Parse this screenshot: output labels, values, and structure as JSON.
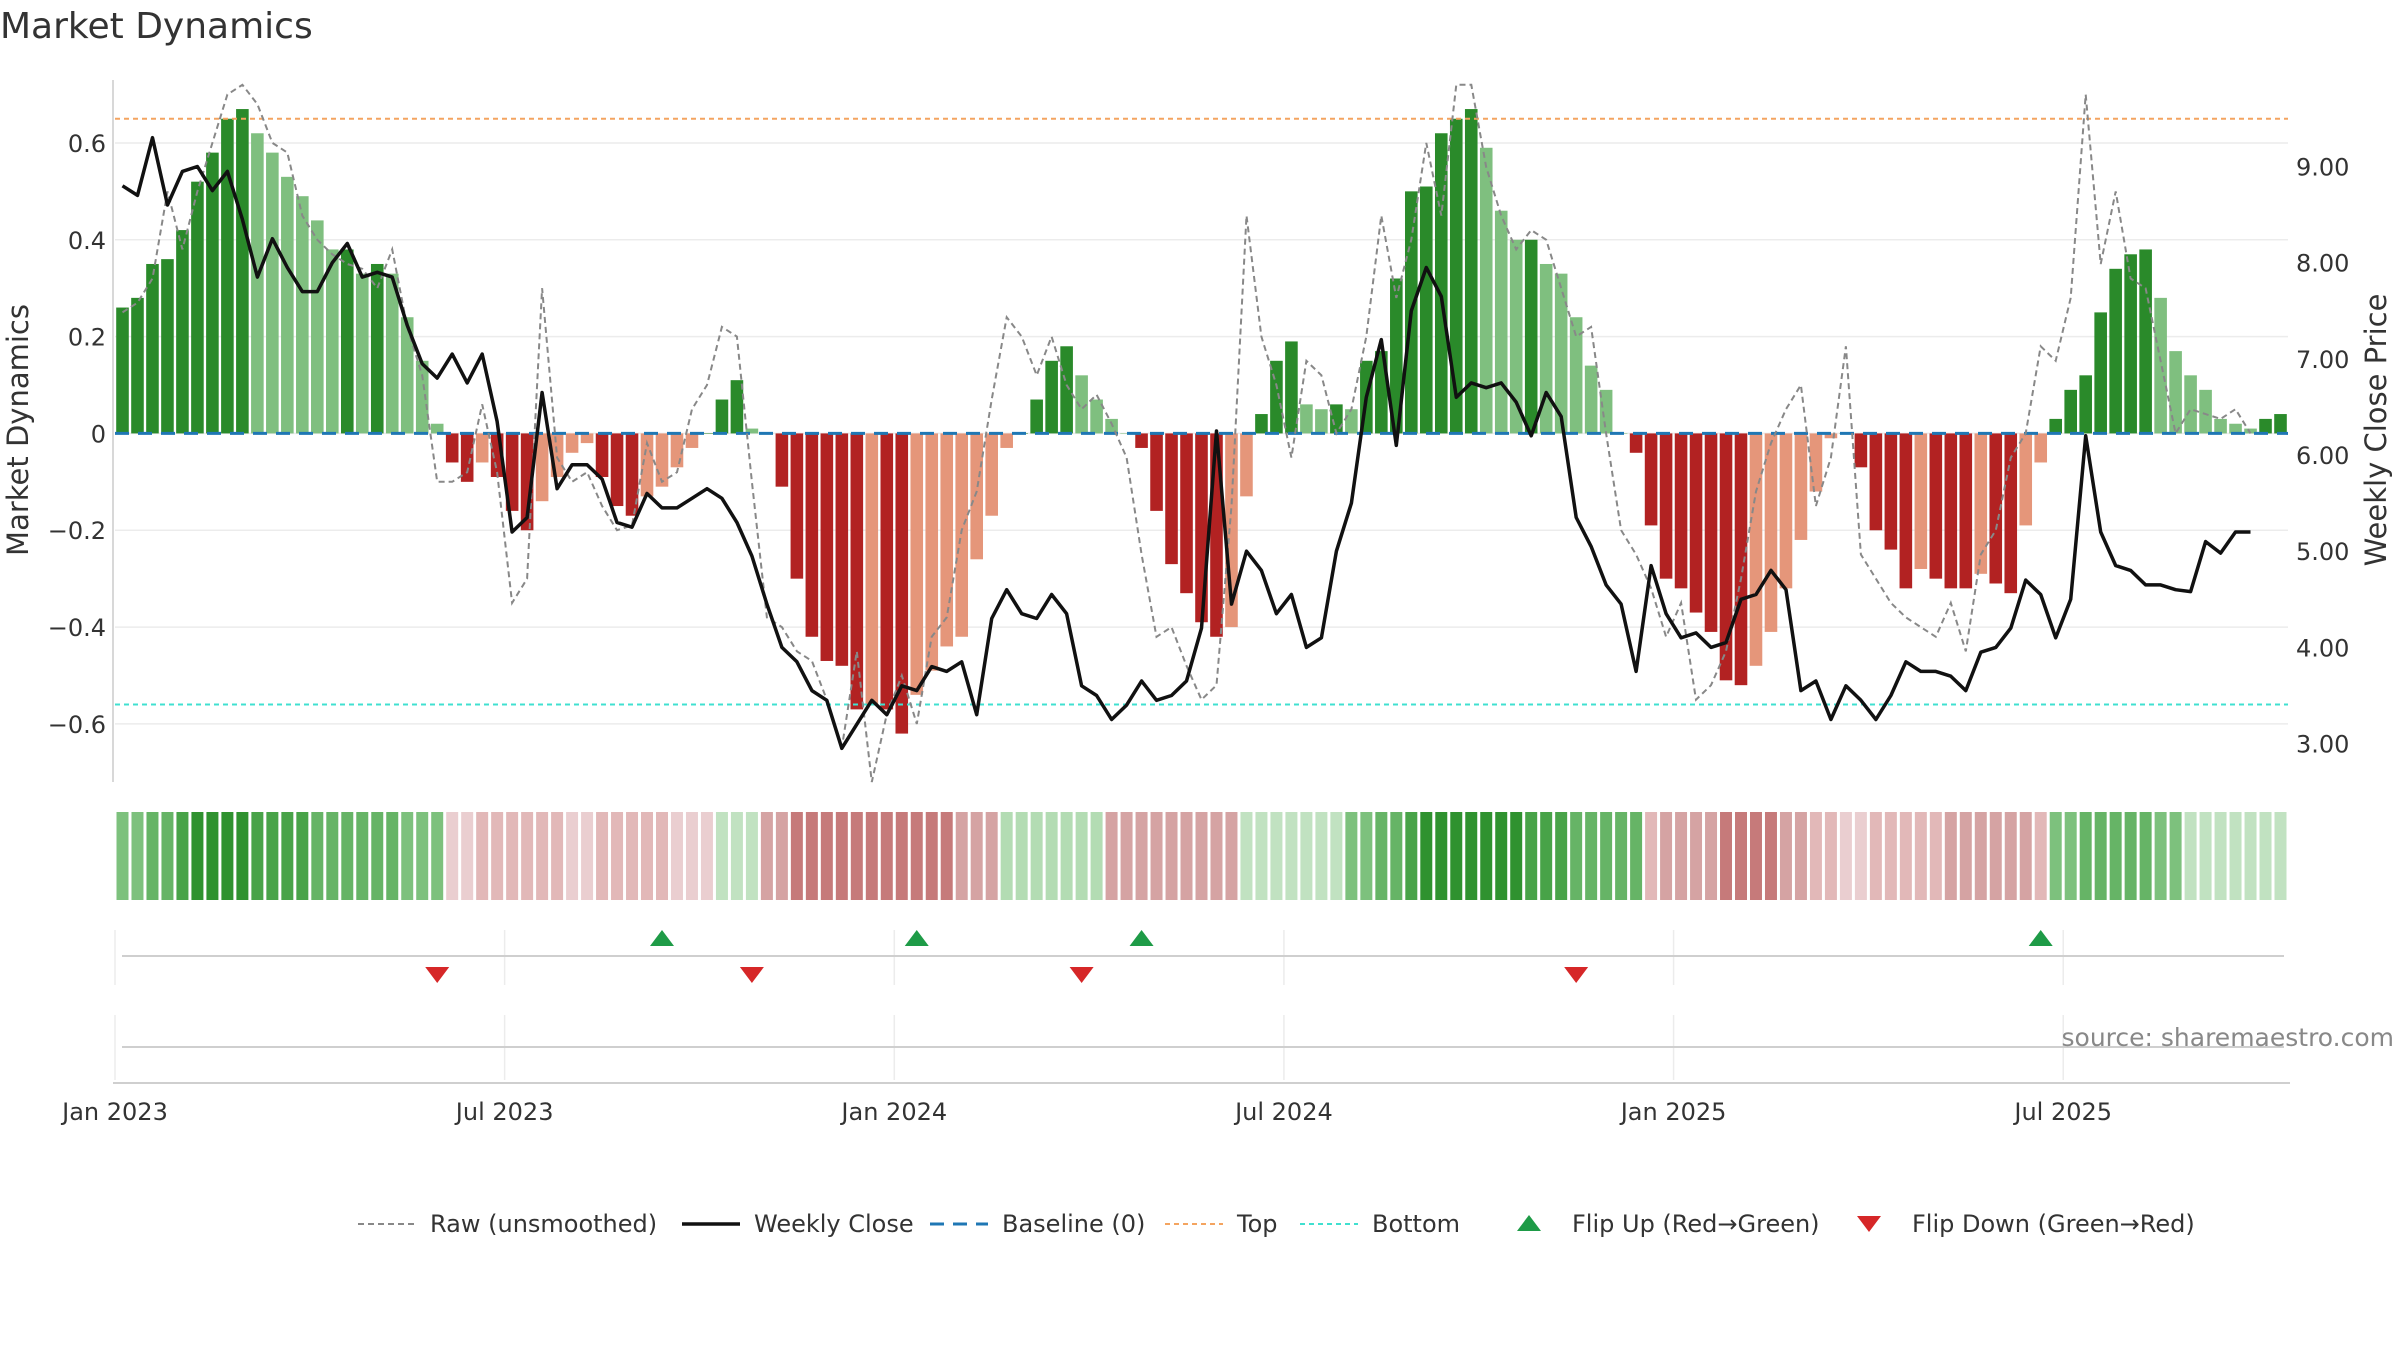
{
  "title": "Market Dynamics",
  "source": "source: sharemaestro.com",
  "chart_data": {
    "type": "bar+line",
    "x_tick_labels": [
      "Jan 2023",
      "Jul 2023",
      "Jan 2024",
      "Jul 2024",
      "Jan 2025",
      "Jul 2025"
    ],
    "x_ticks_week_index": [
      0,
      26,
      52,
      78,
      104,
      130
    ],
    "left_axis": {
      "label": "Market Dynamics",
      "ylim": [
        -0.72,
        0.73
      ],
      "ticks": [
        -0.6,
        -0.4,
        -0.2,
        0,
        0.2,
        0.4,
        0.6
      ],
      "tick_labels": [
        "−0.6",
        "−0.4",
        "−0.2",
        "0",
        "0.2",
        "0.4",
        "0.6"
      ]
    },
    "right_axis": {
      "label": "Weekly Close Price",
      "ylim": [
        2.6,
        9.9
      ],
      "ticks": [
        3.0,
        4.0,
        5.0,
        6.0,
        7.0,
        8.0,
        9.0
      ],
      "tick_labels": [
        "3.00",
        "4.00",
        "5.00",
        "6.00",
        "7.00",
        "8.00",
        "9.00"
      ]
    },
    "top_level": 0.65,
    "bottom_level": -0.56,
    "market_dynamics": [
      0.26,
      0.28,
      0.35,
      0.36,
      0.42,
      0.52,
      0.58,
      0.65,
      0.67,
      0.62,
      0.58,
      0.53,
      0.49,
      0.44,
      0.38,
      0.38,
      0.33,
      0.35,
      0.33,
      0.24,
      0.15,
      0.02,
      -0.06,
      -0.1,
      -0.06,
      -0.09,
      -0.16,
      -0.2,
      -0.14,
      -0.09,
      -0.04,
      -0.02,
      -0.09,
      -0.15,
      -0.17,
      -0.13,
      -0.11,
      -0.07,
      -0.03,
      0.0,
      0.07,
      0.11,
      0.01,
      0.0,
      -0.11,
      -0.3,
      -0.42,
      -0.47,
      -0.48,
      -0.57,
      -0.56,
      -0.57,
      -0.62,
      -0.54,
      -0.49,
      -0.44,
      -0.42,
      -0.26,
      -0.17,
      -0.03,
      0.0,
      0.07,
      0.15,
      0.18,
      0.12,
      0.07,
      0.03,
      0.0,
      -0.03,
      -0.16,
      -0.27,
      -0.33,
      -0.39,
      -0.42,
      -0.4,
      -0.13,
      0.04,
      0.15,
      0.19,
      0.06,
      0.05,
      0.06,
      0.05,
      0.15,
      0.17,
      0.32,
      0.5,
      0.51,
      0.62,
      0.65,
      0.67,
      0.59,
      0.46,
      0.4,
      0.4,
      0.35,
      0.33,
      0.24,
      0.14,
      0.09,
      0.0,
      -0.04,
      -0.19,
      -0.3,
      -0.32,
      -0.37,
      -0.41,
      -0.51,
      -0.52,
      -0.48,
      -0.41,
      -0.32,
      -0.22,
      -0.12,
      -0.01,
      0.0,
      -0.07,
      -0.2,
      -0.24,
      -0.32,
      -0.28,
      -0.3,
      -0.32,
      -0.32,
      -0.29,
      -0.31,
      -0.33,
      -0.19,
      -0.06,
      0.03,
      0.09,
      0.12,
      0.25,
      0.34,
      0.37,
      0.38,
      0.28,
      0.17,
      0.12,
      0.09,
      0.03,
      0.02,
      0.01,
      0.03,
      0.04
    ],
    "bar_colors": {
      "strong_up": "#2a8a2a",
      "weak_up": "#7fbf7f",
      "strong_down": "#b22222",
      "weak_down": "#e5967a"
    },
    "raw_unsmoothed": [
      0.25,
      0.27,
      0.32,
      0.5,
      0.38,
      0.5,
      0.6,
      0.7,
      0.72,
      0.68,
      0.6,
      0.58,
      0.45,
      0.4,
      0.37,
      0.35,
      0.34,
      0.3,
      0.38,
      0.22,
      0.12,
      -0.1,
      -0.1,
      -0.08,
      0.06,
      -0.08,
      -0.35,
      -0.3,
      0.3,
      -0.05,
      -0.1,
      -0.08,
      -0.15,
      -0.2,
      -0.19,
      -0.02,
      -0.1,
      -0.08,
      0.05,
      0.1,
      0.22,
      0.2,
      -0.1,
      -0.38,
      -0.4,
      -0.45,
      -0.47,
      -0.55,
      -0.65,
      -0.45,
      -0.72,
      -0.58,
      -0.5,
      -0.6,
      -0.42,
      -0.38,
      -0.2,
      -0.12,
      0.07,
      0.24,
      0.2,
      0.12,
      0.2,
      0.1,
      0.05,
      0.08,
      0.02,
      -0.05,
      -0.25,
      -0.42,
      -0.4,
      -0.48,
      -0.55,
      -0.52,
      -0.15,
      0.45,
      0.2,
      0.1,
      -0.05,
      0.15,
      0.12,
      0.0,
      0.05,
      0.2,
      0.45,
      0.28,
      0.4,
      0.6,
      0.45,
      0.72,
      0.72,
      0.55,
      0.45,
      0.38,
      0.42,
      0.4,
      0.3,
      0.2,
      0.22,
      0.0,
      -0.2,
      -0.25,
      -0.32,
      -0.42,
      -0.35,
      -0.55,
      -0.52,
      -0.45,
      -0.3,
      -0.12,
      -0.02,
      0.05,
      0.1,
      -0.15,
      -0.05,
      0.18,
      -0.25,
      -0.3,
      -0.35,
      -0.38,
      -0.4,
      -0.42,
      -0.35,
      -0.45,
      -0.25,
      -0.2,
      -0.05,
      0.0,
      0.18,
      0.15,
      0.28,
      0.7,
      0.35,
      0.5,
      0.32,
      0.3,
      0.15,
      0.0,
      0.05,
      0.04,
      0.03,
      0.05,
      0.0
    ],
    "weekly_close": [
      8.8,
      8.7,
      9.3,
      8.6,
      8.95,
      9.0,
      8.75,
      8.95,
      8.45,
      7.85,
      8.25,
      7.95,
      7.7,
      7.7,
      8.0,
      8.2,
      7.85,
      7.9,
      7.85,
      7.35,
      6.95,
      6.8,
      7.05,
      6.75,
      7.05,
      6.35,
      5.2,
      5.35,
      6.65,
      5.65,
      5.9,
      5.9,
      5.75,
      5.3,
      5.25,
      5.6,
      5.45,
      5.45,
      5.55,
      5.65,
      5.55,
      5.3,
      4.95,
      4.45,
      4.0,
      3.85,
      3.55,
      3.45,
      2.95,
      3.2,
      3.45,
      3.3,
      3.6,
      3.55,
      3.8,
      3.75,
      3.85,
      3.3,
      4.3,
      4.6,
      4.35,
      4.3,
      4.55,
      4.35,
      3.6,
      3.5,
      3.25,
      3.4,
      3.65,
      3.45,
      3.5,
      3.65,
      4.2,
      6.25,
      4.45,
      5.0,
      4.8,
      4.35,
      4.55,
      4.0,
      4.1,
      5.0,
      5.5,
      6.6,
      7.2,
      6.1,
      7.5,
      7.95,
      7.65,
      6.6,
      6.75,
      6.7,
      6.75,
      6.55,
      6.2,
      6.65,
      6.4,
      5.35,
      5.05,
      4.65,
      4.45,
      3.75,
      4.85,
      4.35,
      4.1,
      4.15,
      4.0,
      4.05,
      4.5,
      4.55,
      4.8,
      4.6,
      3.55,
      3.65,
      3.25,
      3.6,
      3.45,
      3.25,
      3.5,
      3.85,
      3.75,
      3.75,
      3.7,
      3.55,
      3.95,
      4.0,
      4.2,
      4.7,
      4.55,
      4.1,
      4.5,
      6.2,
      5.2,
      4.85,
      4.8,
      4.65,
      4.65,
      4.6,
      4.58,
      5.1,
      4.98,
      5.2,
      5.2
    ],
    "regime_strip_colors": [
      "#7dc17d",
      "#7dc17d",
      "#66b466",
      "#66b466",
      "#48a348",
      "#2f922f",
      "#2f922f",
      "#2f922f",
      "#2f922f",
      "#48a348",
      "#48a348",
      "#48a348",
      "#48a348",
      "#66b466",
      "#66b466",
      "#66b466",
      "#66b466",
      "#66b466",
      "#66b466",
      "#7dc17d",
      "#7dc17d",
      "#7dc17d",
      "#eaced0",
      "#eaced0",
      "#e2b8b8",
      "#e2b8b8",
      "#e2b8b8",
      "#e2b8b8",
      "#e2b8b8",
      "#e2b8b8",
      "#eaced0",
      "#eaced0",
      "#e2b8b8",
      "#e2b8b8",
      "#e2b8b8",
      "#e2b8b8",
      "#e2b8b8",
      "#eaced0",
      "#eaced0",
      "#eaced0",
      "#c1e2c1",
      "#c1e2c1",
      "#c1e2c1",
      "#d5a3a3",
      "#d5a3a3",
      "#c67a7a",
      "#c67a7a",
      "#c67a7a",
      "#c67a7a",
      "#c67a7a",
      "#c67a7a",
      "#c67a7a",
      "#c67a7a",
      "#c67a7a",
      "#c67a7a",
      "#c67a7a",
      "#d5a3a3",
      "#d5a3a3",
      "#d5a3a3",
      "#b3dcb3",
      "#b3dcb3",
      "#b3dcb3",
      "#b3dcb3",
      "#b3dcb3",
      "#b3dcb3",
      "#b3dcb3",
      "#d5a3a3",
      "#d5a3a3",
      "#d5a3a3",
      "#d5a3a3",
      "#d5a3a3",
      "#d5a3a3",
      "#d5a3a3",
      "#d5a3a3",
      "#d5a3a3",
      "#c1e2c1",
      "#c1e2c1",
      "#c1e2c1",
      "#c1e2c1",
      "#c1e2c1",
      "#c1e2c1",
      "#c1e2c1",
      "#7dc17d",
      "#7dc17d",
      "#66b466",
      "#66b466",
      "#48a348",
      "#2f922f",
      "#2f922f",
      "#2f922f",
      "#2f922f",
      "#2f922f",
      "#2f922f",
      "#2f922f",
      "#48a348",
      "#48a348",
      "#48a348",
      "#66b466",
      "#66b466",
      "#66b466",
      "#66b466",
      "#66b466",
      "#e2b8b8",
      "#d5a3a3",
      "#d5a3a3",
      "#d5a3a3",
      "#d5a3a3",
      "#c67a7a",
      "#c67a7a",
      "#c67a7a",
      "#c67a7a",
      "#d5a3a3",
      "#d5a3a3",
      "#e2b8b8",
      "#e2b8b8",
      "#eaced0",
      "#eaced0",
      "#e2b8b8",
      "#e2b8b8",
      "#e2b8b8",
      "#e2b8b8",
      "#e2b8b8",
      "#d5a3a3",
      "#d5a3a3",
      "#d5a3a3",
      "#d5a3a3",
      "#d5a3a3",
      "#d5a3a3",
      "#e2b8b8",
      "#7dc17d",
      "#7dc17d",
      "#66b466",
      "#66b466",
      "#66b466",
      "#66b466",
      "#66b466",
      "#7dc17d",
      "#7dc17d",
      "#c1e2c1",
      "#c1e2c1",
      "#c1e2c1",
      "#c1e2c1",
      "#c1e2c1",
      "#c1e2c1",
      "#c1e2c1"
    ],
    "flip_up_weeks": [
      36.5,
      53.5,
      68.5,
      128.5
    ],
    "flip_down_weeks": [
      21.5,
      42.5,
      64.5,
      97.5
    ],
    "colors": {
      "raw": "#888888",
      "close": "#111111",
      "baseline": "#1f77b4",
      "top": "#f4a460",
      "bottom": "#40e0d0",
      "flip_up": "#1e9b47",
      "flip_down": "#d62728"
    },
    "legend": [
      {
        "label": "Raw (unsmoothed)",
        "style": "dashed-gray"
      },
      {
        "label": "Weekly Close",
        "style": "solid-black"
      },
      {
        "label": "Baseline (0)",
        "style": "dashed-blue"
      },
      {
        "label": "Top",
        "style": "dotted-orange"
      },
      {
        "label": "Bottom",
        "style": "dotted-cyan"
      },
      {
        "label": "Flip Up (Red→Green)",
        "style": "triangle-up-green"
      },
      {
        "label": "Flip Down (Green→Red)",
        "style": "triangle-down-red"
      }
    ]
  }
}
